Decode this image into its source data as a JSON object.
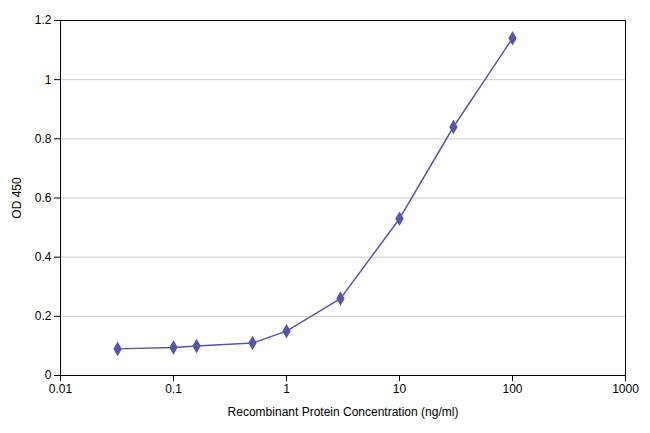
{
  "chart_data": {
    "type": "line",
    "x": [
      0.032,
      0.1,
      0.16,
      0.5,
      1.0,
      3.0,
      10.0,
      30.0,
      100.0
    ],
    "values": [
      0.09,
      0.095,
      0.1,
      0.11,
      0.15,
      0.26,
      0.53,
      0.84,
      1.14
    ],
    "color": "#5555aa",
    "marker": "diamond",
    "xlabel": "Recombinant Protein Concentration (ng/ml)",
    "ylabel": "OD 450",
    "log": "x",
    "xlim": [
      0.01,
      1000
    ],
    "ylim": [
      0,
      1.2
    ],
    "xticks": [
      0.01,
      0.1,
      1,
      10,
      100,
      1000
    ],
    "yticks": [
      0,
      0.2,
      0.4,
      0.6,
      0.8,
      1.0,
      1.2
    ],
    "grid": "y"
  }
}
